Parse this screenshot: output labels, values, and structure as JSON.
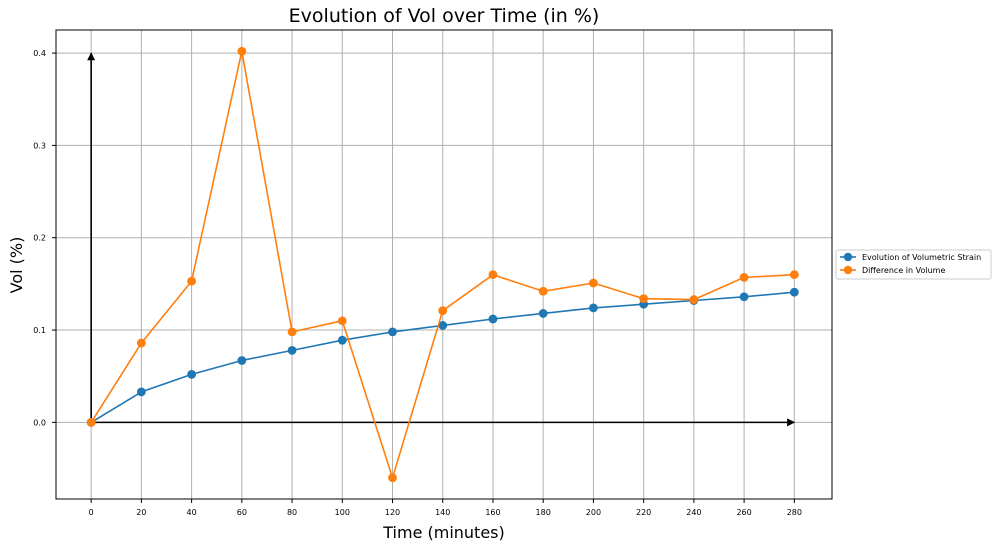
{
  "chart_data": {
    "type": "line",
    "title": "Evolution of Vol over Time (in %)",
    "xlabel": "Time (minutes)",
    "ylabel": "Vol (%)",
    "x": [
      0,
      20,
      40,
      60,
      80,
      100,
      120,
      140,
      160,
      180,
      200,
      220,
      240,
      260,
      280
    ],
    "x_ticks": [
      "0",
      "20",
      "40",
      "60",
      "80",
      "100",
      "120",
      "140",
      "160",
      "180",
      "200",
      "220",
      "240",
      "260",
      "280"
    ],
    "y_ticks": [
      "0.0",
      "0.1",
      "0.2",
      "0.3",
      "0.4"
    ],
    "xlim": [
      -14,
      295
    ],
    "ylim": [
      -0.083,
      0.425
    ],
    "grid": true,
    "legend_position": "center-right, outside plot",
    "series": [
      {
        "name": "Evolution of Volumetric Strain",
        "color": "#1f77b4",
        "values": [
          0.0,
          0.033,
          0.052,
          0.067,
          0.078,
          0.089,
          0.098,
          0.105,
          0.112,
          0.118,
          0.124,
          0.128,
          0.132,
          0.136,
          0.141
        ]
      },
      {
        "name": "Difference in Volume",
        "color": "#ff7f0e",
        "values": [
          0.0,
          0.086,
          0.153,
          0.402,
          0.098,
          0.11,
          -0.06,
          0.121,
          0.16,
          0.142,
          0.151,
          0.134,
          0.133,
          0.157,
          0.16
        ]
      }
    ],
    "annotations": [
      {
        "type": "arrow",
        "from": [
          0,
          0
        ],
        "to": [
          280,
          0
        ],
        "color": "#000000"
      },
      {
        "type": "arrow",
        "from": [
          0,
          0
        ],
        "to": [
          0,
          0.4
        ],
        "color": "#000000"
      }
    ]
  }
}
